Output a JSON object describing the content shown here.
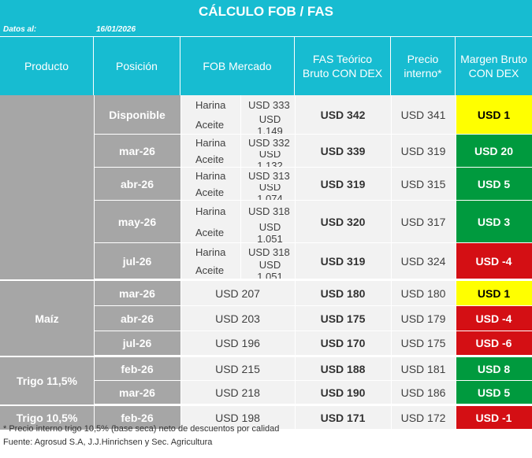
{
  "title": "CÁLCULO FOB / FAS",
  "date_label": "Datos al:",
  "date_value": "16/01/2026",
  "headers": {
    "producto": "Producto",
    "posicion": "Posición",
    "fob": "FOB Mercado",
    "fas_line1": "FAS Teórico",
    "fas_line2": "Bruto CON DEX",
    "precio_line1": "Precio",
    "precio_line2": "interno*",
    "margen_line1": "Margen Bruto",
    "margen_line2": "CON DEX"
  },
  "colors": {
    "header": "#17bcd1",
    "yellow": "#ffff00",
    "green": "#009a3e",
    "red": "#d40f14"
  },
  "soja_rows": [
    {
      "posicion": "Disponible",
      "harina_label": "Harina",
      "harina": "USD 333",
      "aceite_label": "Aceite",
      "aceite": "USD 1.149",
      "fas": "USD 342",
      "precio": "USD 341",
      "margen": "USD 1",
      "color": "yellow"
    },
    {
      "posicion": "mar-26",
      "harina_label": "Harina",
      "harina": "USD 332",
      "aceite_label": "Aceite",
      "aceite": "USD 1.132",
      "fas": "USD 339",
      "precio": "USD 319",
      "margen": "USD 20",
      "color": "green"
    },
    {
      "posicion": "abr-26",
      "harina_label": "Harina",
      "harina": "USD 313",
      "aceite_label": "Aceite",
      "aceite": "USD 1.074",
      "fas": "USD 319",
      "precio": "USD 315",
      "margen": "USD 5",
      "color": "green"
    },
    {
      "posicion": "may-26",
      "harina_label": "Harina",
      "harina": "USD 318",
      "aceite_label": "Aceite",
      "aceite": "USD 1.051",
      "fas": "USD 320",
      "precio": "USD 317",
      "margen": "USD 3",
      "color": "green"
    },
    {
      "posicion": "jul-26",
      "harina_label": "Harina",
      "harina": "USD 318",
      "aceite_label": "Aceite",
      "aceite": "USD 1.051",
      "fas": "USD 319",
      "precio": "USD 324",
      "margen": "USD -4",
      "color": "red"
    }
  ],
  "groups": [
    {
      "producto": "Maíz",
      "rows": [
        {
          "posicion": "mar-26",
          "fob": "USD 207",
          "fas": "USD 180",
          "precio": "USD 180",
          "margen": "USD 1",
          "color": "yellow"
        },
        {
          "posicion": "abr-26",
          "fob": "USD 203",
          "fas": "USD 175",
          "precio": "USD 179",
          "margen": "USD -4",
          "color": "red"
        },
        {
          "posicion": "jul-26",
          "fob": "USD 196",
          "fas": "USD 170",
          "precio": "USD 175",
          "margen": "USD -6",
          "color": "red"
        }
      ]
    },
    {
      "producto": "Trigo 11,5%",
      "rows": [
        {
          "posicion": "feb-26",
          "fob": "USD 215",
          "fas": "USD 188",
          "precio": "USD 181",
          "margen": "USD 8",
          "color": "green"
        },
        {
          "posicion": "mar-26",
          "fob": "USD 218",
          "fas": "USD 190",
          "precio": "USD 186",
          "margen": "USD 5",
          "color": "green"
        }
      ]
    },
    {
      "producto": "Trigo 10,5%",
      "rows": [
        {
          "posicion": "feb-26",
          "fob": "USD 198",
          "fas": "USD 171",
          "precio": "USD 172",
          "margen": "USD -1",
          "color": "red"
        }
      ]
    }
  ],
  "footnote": "* Precio interno trigo 10,5% (base seca) neto de descuentos por calidad",
  "source": "Fuente: Agrosud S.A, J.J.Hinrichsen y Sec. Agricultura"
}
